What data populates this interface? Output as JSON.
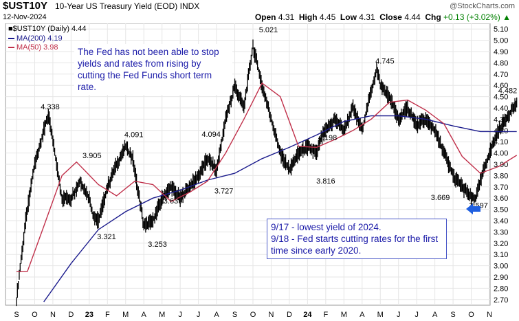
{
  "header": {
    "symbol": "$UST10Y",
    "title": "10-Year US Treasury Yield (EOD)",
    "exchange": "INDX",
    "date": "12-Nov-2024",
    "brand": "@StockCharts.com",
    "open_label": "Open",
    "open": "4.31",
    "high_label": "High",
    "high": "4.45",
    "low_label": "Low",
    "low": "4.31",
    "close_label": "Close",
    "close": "4.44",
    "chg_label": "Chg",
    "chg": "+0.13 (+3.02%)",
    "chg_icon": "up-triangle-icon"
  },
  "legend": {
    "series_label": "$UST10Y (Daily) 4.44",
    "ma200_label": "MA(200) 4.19",
    "ma50_label": "MA(50) 3.98"
  },
  "annotations": {
    "note1": "The Fed has not been able to stop yields and rates from rising by cutting the Fed Funds short term rate.",
    "note2_line1": "9/17 - lowest yield of 2024.",
    "note2_line2": "9/18 - Fed starts cutting rates for the first time since early 2020."
  },
  "colors": {
    "price": "#000000",
    "ma200": "#1a1a8c",
    "ma50": "#c0304a",
    "annotation_text": "#1a1aa8",
    "arrow": "#1f5fe0",
    "grid": "#e6e6e6",
    "change_up": "#008000"
  },
  "chart_data": {
    "type": "line",
    "title": "$UST10Y 10-Year US Treasury Yield (EOD)",
    "ylim": [
      2.65,
      5.15
    ],
    "y_ticks": [
      2.7,
      2.8,
      2.9,
      3.0,
      3.1,
      3.2,
      3.3,
      3.4,
      3.5,
      3.6,
      3.7,
      3.8,
      3.9,
      4.0,
      4.1,
      4.2,
      4.3,
      4.4,
      4.5,
      4.6,
      4.7,
      4.8,
      4.9,
      5.0,
      5.1
    ],
    "month_labels": [
      "S",
      "O",
      "N",
      "D",
      "23",
      "F",
      "M",
      "A",
      "M",
      "J",
      "J",
      "A",
      "S",
      "O",
      "N",
      "D",
      "24",
      "F",
      "M",
      "A",
      "M",
      "J",
      "J",
      "A",
      "S",
      "O",
      "N"
    ],
    "bold_labels": [
      "23",
      "24"
    ],
    "grid": true,
    "legend_position": "top-left",
    "series": [
      {
        "name": "$UST10Y (Daily)",
        "x": [
          0,
          0.5,
          1,
          1.5,
          1.75,
          2,
          2.5,
          3,
          3.5,
          4,
          4.2,
          4.5,
          5,
          5.5,
          6,
          6.4,
          7,
          7.5,
          8,
          8.5,
          9,
          9.5,
          10,
          10.5,
          11,
          11.5,
          12,
          12.5,
          13,
          13.5,
          14,
          14.5,
          15,
          15.5,
          16,
          16.5,
          16.8,
          17,
          17.5,
          18,
          18.5,
          19,
          19.5,
          19.8,
          20,
          20.5,
          21,
          21.5,
          22,
          22.5,
          23,
          23.5,
          24,
          24.5,
          25,
          25.25,
          25.5,
          26,
          26.5,
          27,
          27.5
        ],
        "values": [
          2.7,
          3.4,
          3.9,
          4.2,
          4.338,
          4.1,
          3.6,
          3.6,
          3.75,
          3.6,
          3.45,
          3.4,
          3.7,
          3.9,
          4.05,
          3.95,
          3.35,
          3.4,
          3.6,
          3.7,
          3.6,
          3.7,
          3.8,
          3.95,
          3.85,
          4.3,
          4.6,
          4.4,
          4.95,
          4.6,
          4.3,
          4.0,
          3.85,
          4.0,
          4.05,
          4.0,
          4.15,
          4.198,
          4.3,
          4.2,
          4.4,
          4.2,
          4.55,
          4.745,
          4.6,
          4.5,
          4.3,
          4.4,
          4.25,
          4.3,
          4.2,
          4.0,
          3.8,
          3.7,
          3.6,
          3.597,
          3.75,
          4.0,
          4.2,
          4.33,
          4.44
        ]
      },
      {
        "name": "MA(200)",
        "x": [
          1.5,
          3,
          4.5,
          6,
          7.5,
          9,
          10.5,
          12,
          13.5,
          15,
          16.5,
          18,
          19.5,
          21,
          22.5,
          24,
          25.5,
          27.5
        ],
        "values": [
          2.68,
          3.02,
          3.32,
          3.48,
          3.6,
          3.67,
          3.76,
          3.82,
          3.95,
          4.05,
          4.16,
          4.28,
          4.33,
          4.33,
          4.3,
          4.24,
          4.19,
          4.19
        ]
      },
      {
        "name": "MA(50)",
        "x": [
          0,
          0.6,
          1.5,
          2.5,
          3.3,
          4.5,
          5.5,
          6.5,
          7.5,
          8.5,
          9.5,
          10.5,
          11.5,
          12.5,
          13.5,
          14.5,
          15.5,
          16.5,
          17.5,
          18.5,
          19.5,
          20.5,
          21.5,
          22.5,
          23.5,
          24.5,
          25.5,
          26.5,
          27.5
        ],
        "values": [
          2.95,
          2.95,
          3.35,
          3.8,
          3.92,
          3.72,
          3.62,
          3.75,
          3.72,
          3.57,
          3.65,
          3.75,
          4.0,
          4.3,
          4.62,
          4.5,
          4.06,
          4.05,
          4.12,
          4.2,
          4.3,
          4.45,
          4.47,
          4.38,
          4.26,
          3.97,
          3.82,
          3.88,
          3.98
        ]
      }
    ],
    "data_labels": [
      {
        "x": 1.85,
        "y": 4.338,
        "text": "4.338"
      },
      {
        "x": 4.15,
        "y": 3.905,
        "text": "3.905"
      },
      {
        "x": 6.45,
        "y": 4.091,
        "text": "4.091"
      },
      {
        "x": 4.95,
        "y": 3.321,
        "text": "3.321"
      },
      {
        "x": 7.75,
        "y": 3.253,
        "text": "3.253"
      },
      {
        "x": 8.6,
        "y": 3.639,
        "text": "3.639"
      },
      {
        "x": 10.7,
        "y": 4.094,
        "text": "4.094"
      },
      {
        "x": 11.4,
        "y": 3.727,
        "text": "3.727"
      },
      {
        "x": 13.85,
        "y": 5.021,
        "text": "5.021"
      },
      {
        "x": 17.1,
        "y": 4.198,
        "text": "4.198"
      },
      {
        "x": 17.0,
        "y": 3.816,
        "text": "3.816"
      },
      {
        "x": 20.25,
        "y": 4.745,
        "text": "4.745"
      },
      {
        "x": 23.3,
        "y": 3.669,
        "text": "3.669"
      },
      {
        "x": 25.4,
        "y": 3.597,
        "text": "3.597"
      },
      {
        "x": 27.0,
        "y": 4.482,
        "text": "4.482"
      }
    ]
  }
}
